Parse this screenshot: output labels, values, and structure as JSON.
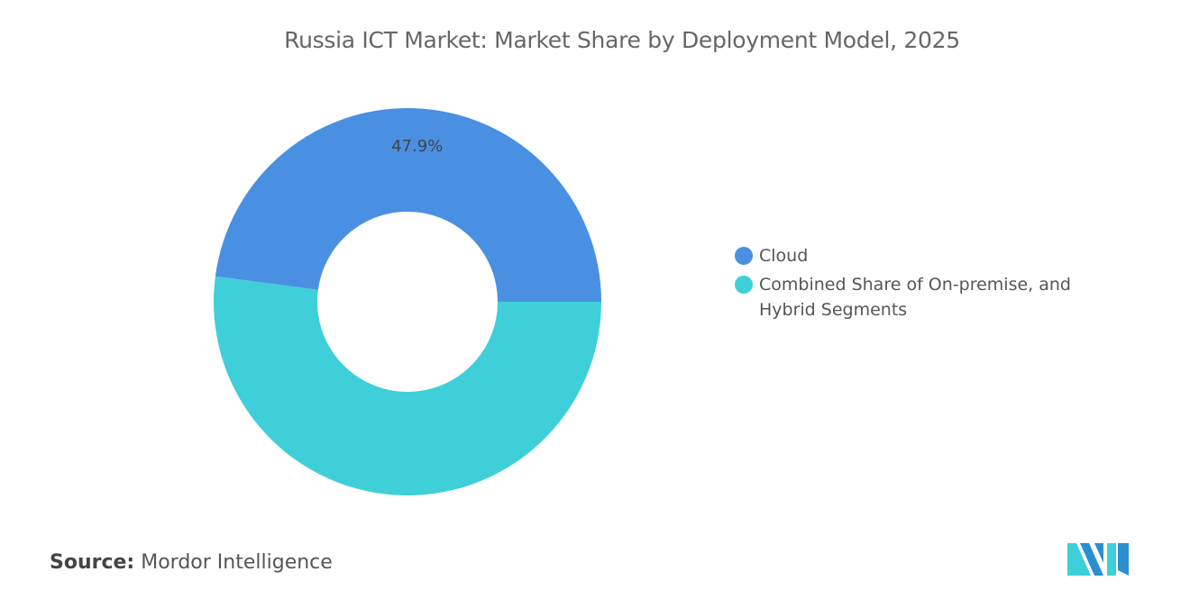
{
  "title": "Russia ICT Market: Market Share by Deployment Model, 2025",
  "source_label": "Source:",
  "source_value": "Mordor Intelligence",
  "logo_text": "Mordor Intelligence",
  "chart_data": {
    "type": "pie",
    "donut": true,
    "title": "Russia ICT Market: Market Share by Deployment Model, 2025",
    "categories": [
      "Cloud",
      "Combined Share of On-premise, and Hybrid Segments"
    ],
    "values": [
      47.9,
      52.1
    ],
    "data_labels": [
      "47.9%",
      ""
    ],
    "colors": [
      "#4a90e2",
      "#3fcfd8"
    ],
    "legend_position": "right"
  }
}
